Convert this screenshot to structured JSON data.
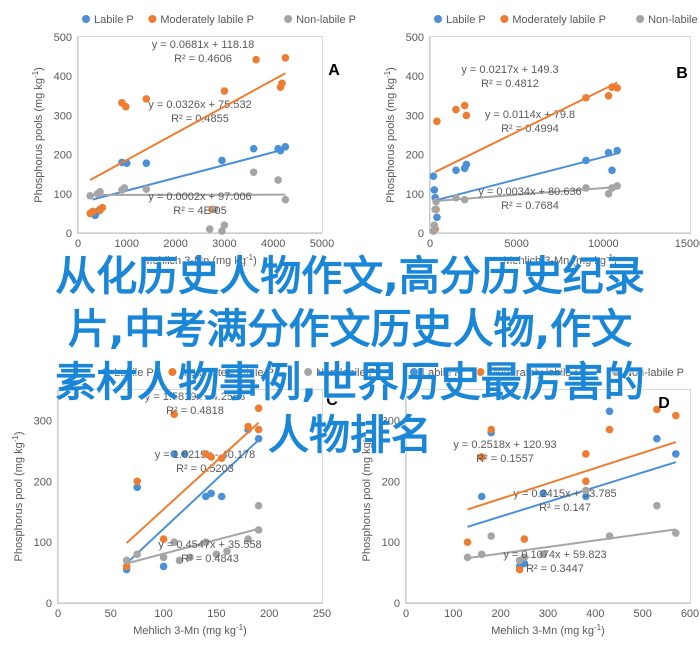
{
  "overlay_text": {
    "line1": "从化历史人物作文,高分历史纪录",
    "line2": "片,中考满分作文历史人物,作文",
    "line3": "素材人物事例,世界历史最厉害的",
    "line4": "人物排名"
  },
  "colors": {
    "labile": "#4a90d9",
    "moderately_labile": "#ef7d31",
    "non_labile": "#a5a5a5",
    "overlay_text": "#1a86d8"
  },
  "chart_data": [
    {
      "type": "scatter",
      "panel_label": "A",
      "xlabel": "Mehlich 3-Mn (mg kg-1)",
      "ylabel": "Phosphorus pools (mg kg-1)",
      "xlim": [
        0,
        5000
      ],
      "ylim": [
        0,
        500
      ],
      "xticks": [
        0,
        1000,
        2000,
        3000,
        4000,
        5000
      ],
      "yticks": [
        0,
        100,
        200,
        300,
        400,
        500
      ],
      "grid": false,
      "legend_position": "top",
      "series": [
        {
          "name": "Labile P",
          "color": "#4a90d9",
          "points": [
            [
              300,
              50
            ],
            [
              350,
              45
            ],
            [
              400,
              55
            ],
            [
              450,
              60
            ],
            [
              900,
              180
            ],
            [
              1000,
              178
            ],
            [
              1400,
              178
            ],
            [
              2950,
              185
            ],
            [
              3600,
              215
            ],
            [
              4100,
              215
            ],
            [
              4150,
              210
            ],
            [
              4250,
              220
            ]
          ],
          "trend": {
            "slope": 0.0326,
            "intercept": 75.532,
            "r2": "0.4855",
            "x_range": [
              300,
              4250
            ]
          },
          "equation": "y = 0.0326x + 75.532",
          "r2_label": "R² = 0.4855"
        },
        {
          "name": "Moderately labile P",
          "color": "#ef7d31",
          "points": [
            [
              250,
              50
            ],
            [
              300,
              55
            ],
            [
              450,
              58
            ],
            [
              500,
              65
            ],
            [
              900,
              332
            ],
            [
              980,
              322
            ],
            [
              1400,
              342
            ],
            [
              2750,
              60
            ],
            [
              3000,
              362
            ],
            [
              3650,
              442
            ],
            [
              4150,
              372
            ],
            [
              4180,
              382
            ],
            [
              4250,
              447
            ]
          ],
          "trend": {
            "slope": 0.0681,
            "intercept": 118.18,
            "r2": "0.4606",
            "x_range": [
              250,
              4250
            ]
          },
          "equation": "y = 0.0681x + 118.18",
          "r2_label": "R² = 0.4606"
        },
        {
          "name": "Non-labile P",
          "color": "#a5a5a5",
          "points": [
            [
              250,
              95
            ],
            [
              400,
              100
            ],
            [
              450,
              105
            ],
            [
              900,
              110
            ],
            [
              950,
              115
            ],
            [
              1400,
              112
            ],
            [
              2700,
              10
            ],
            [
              2800,
              60
            ],
            [
              2950,
              5
            ],
            [
              3000,
              20
            ],
            [
              3600,
              155
            ],
            [
              4100,
              135
            ],
            [
              4250,
              85
            ]
          ],
          "trend": {
            "slope": 0.0002,
            "intercept": 97.006,
            "r2": "4E-05",
            "x_range": [
              250,
              4250
            ]
          },
          "equation": "y = 0.0002x + 97.006",
          "r2_label": "R² = 4E-05"
        }
      ]
    },
    {
      "type": "scatter",
      "panel_label": "B",
      "xlabel": "Mehlich 3-Mn (mg kg-1)",
      "ylabel": "Phosphorus pools (mg kg-1)",
      "xlim": [
        0,
        15000
      ],
      "ylim": [
        0,
        500
      ],
      "xticks": [
        0,
        5000,
        10000,
        15000
      ],
      "yticks": [
        0,
        100,
        200,
        300,
        400,
        500
      ],
      "grid": false,
      "legend_position": "top",
      "series": [
        {
          "name": "Labile P",
          "color": "#4a90d9",
          "points": [
            [
              200,
              145
            ],
            [
              250,
              110
            ],
            [
              300,
              90
            ],
            [
              400,
              40
            ],
            [
              1500,
              160
            ],
            [
              2000,
              165
            ],
            [
              2100,
              175
            ],
            [
              9000,
              185
            ],
            [
              10300,
              205
            ],
            [
              10500,
              160
            ],
            [
              10800,
              210
            ]
          ],
          "trend": {
            "slope": 0.0114,
            "intercept": 79.8,
            "r2": "0.4994",
            "x_range": [
              200,
              10800
            ]
          },
          "equation": "y = 0.0114x + 79.8",
          "r2_label": "R² = 0.4994"
        },
        {
          "name": "Moderately labile P",
          "color": "#ef7d31",
          "points": [
            [
              300,
              10
            ],
            [
              350,
              60
            ],
            [
              400,
              285
            ],
            [
              1500,
              315
            ],
            [
              2000,
              325
            ],
            [
              2100,
              300
            ],
            [
              9000,
              345
            ],
            [
              10300,
              350
            ],
            [
              10500,
              372
            ],
            [
              10800,
              370
            ]
          ],
          "trend": {
            "slope": 0.0217,
            "intercept": 149.3,
            "r2": "0.4812",
            "x_range": [
              300,
              10800
            ]
          },
          "equation": "y = 0.0217x + 149.3",
          "r2_label": "R² = 0.4812"
        },
        {
          "name": "Non-labile P",
          "color": "#a5a5a5",
          "points": [
            [
              200,
              5
            ],
            [
              250,
              20
            ],
            [
              300,
              60
            ],
            [
              350,
              80
            ],
            [
              1500,
              90
            ],
            [
              2000,
              85
            ],
            [
              9000,
              115
            ],
            [
              10300,
              100
            ],
            [
              10500,
              115
            ],
            [
              10800,
              120
            ]
          ],
          "trend": {
            "slope": 0.0034,
            "intercept": 80.636,
            "r2": "0.7684",
            "x_range": [
              200,
              10800
            ]
          },
          "equation": "y = 0.0034x + 80.636",
          "r2_label": "R² = 0.7684"
        }
      ]
    },
    {
      "type": "scatter",
      "panel_label": "C",
      "xlabel": "Mehlich 3-Mn (mg kg-1)",
      "ylabel": "Phosphorus pool (mg kg-1)",
      "xlim": [
        0,
        250
      ],
      "ylim": [
        0,
        350
      ],
      "xticks": [
        0,
        50,
        100,
        150,
        200,
        250
      ],
      "yticks": [
        0,
        100,
        200,
        300
      ],
      "grid": false,
      "legend_position": "top",
      "series": [
        {
          "name": "Labile P",
          "color": "#4a90d9",
          "points": [
            [
              65,
              55
            ],
            [
              75,
              190
            ],
            [
              100,
              60
            ],
            [
              110,
              245
            ],
            [
              120,
              245
            ],
            [
              140,
              175
            ],
            [
              145,
              180
            ],
            [
              155,
              175
            ],
            [
              180,
              285
            ],
            [
              190,
              270
            ]
          ],
          "trend": {
            "slope": 1.6219,
            "intercept": -40.178,
            "r2": "0.5203",
            "x_range": [
              65,
              190
            ]
          },
          "equation": "y = 1.6219x - 40.178",
          "r2_label": "R² = 0.5203"
        },
        {
          "name": "Moderately labile P",
          "color": "#ef7d31",
          "points": [
            [
              65,
              60
            ],
            [
              75,
              200
            ],
            [
              100,
              105
            ],
            [
              110,
              310
            ],
            [
              140,
              245
            ],
            [
              145,
              240
            ],
            [
              155,
              238
            ],
            [
              180,
              290
            ],
            [
              190,
              285
            ],
            [
              190,
              320
            ]
          ],
          "trend": {
            "slope": 1.5819,
            "intercept": -4.2568,
            "r2": "0.4818",
            "x_range": [
              65,
              190
            ]
          },
          "equation": "y = 1.5819x - 4.2568",
          "r2_label": "R² = 0.4818"
        },
        {
          "name": "Non-labile P",
          "color": "#a5a5a5",
          "points": [
            [
              65,
              70
            ],
            [
              75,
              80
            ],
            [
              100,
              75
            ],
            [
              110,
              100
            ],
            [
              115,
              70
            ],
            [
              125,
              75
            ],
            [
              140,
              100
            ],
            [
              150,
              80
            ],
            [
              160,
              85
            ],
            [
              180,
              105
            ],
            [
              190,
              160
            ],
            [
              190,
              120
            ]
          ],
          "trend": {
            "slope": 0.4547,
            "intercept": 35.558,
            "r2": "0.4843",
            "x_range": [
              65,
              190
            ]
          },
          "equation": "y = 0.4547x + 35.558",
          "r2_label": "R² = 0.4843"
        }
      ]
    },
    {
      "type": "scatter",
      "panel_label": "D",
      "xlabel": "Mehlich 3-Mn (mg kg-1)",
      "ylabel": "Phosphorus pool (mg kg-1)",
      "xlim": [
        0,
        600
      ],
      "ylim": [
        0,
        350
      ],
      "xticks": [
        0,
        100,
        200,
        300,
        400,
        500,
        600
      ],
      "yticks": [
        0,
        100,
        200,
        300
      ],
      "grid": false,
      "legend_position": "top",
      "series": [
        {
          "name": "Labile P",
          "color": "#4a90d9",
          "points": [
            [
              160,
              175
            ],
            [
              180,
              280
            ],
            [
              240,
              60
            ],
            [
              250,
              65
            ],
            [
              290,
              180
            ],
            [
              380,
              175
            ],
            [
              430,
              315
            ],
            [
              530,
              270
            ],
            [
              570,
              245
            ]
          ],
          "trend": {
            "slope": 0.2415,
            "intercept": 93.785,
            "r2": "0.147",
            "x_range": [
              130,
              570
            ]
          },
          "equation": "y = 0.2415x + 93.785",
          "r2_label": "R² = 0.147"
        },
        {
          "name": "Moderately labile P",
          "color": "#ef7d31",
          "points": [
            [
              130,
              100
            ],
            [
              160,
              240
            ],
            [
              180,
              285
            ],
            [
              240,
              55
            ],
            [
              250,
              105
            ],
            [
              380,
              200
            ],
            [
              380,
              245
            ],
            [
              430,
              285
            ],
            [
              530,
              318
            ],
            [
              570,
              308
            ]
          ],
          "trend": {
            "slope": 0.2518,
            "intercept": 120.93,
            "r2": "0.1557",
            "x_range": [
              130,
              570
            ]
          },
          "equation": "y = 0.2518x + 120.93",
          "r2_label": "R² = 0.1557"
        },
        {
          "name": "Non-labile P",
          "color": "#a5a5a5",
          "points": [
            [
              130,
              75
            ],
            [
              160,
              80
            ],
            [
              180,
              110
            ],
            [
              240,
              70
            ],
            [
              250,
              75
            ],
            [
              290,
              80
            ],
            [
              380,
              185
            ],
            [
              430,
              110
            ],
            [
              530,
              160
            ],
            [
              570,
              115
            ]
          ],
          "trend": {
            "slope": 0.1074,
            "intercept": 59.823,
            "r2": "0.3447",
            "x_range": [
              130,
              570
            ]
          },
          "equation": "y = 0.1074x + 59.823",
          "r2_label": "R² = 0.3447"
        }
      ]
    }
  ]
}
